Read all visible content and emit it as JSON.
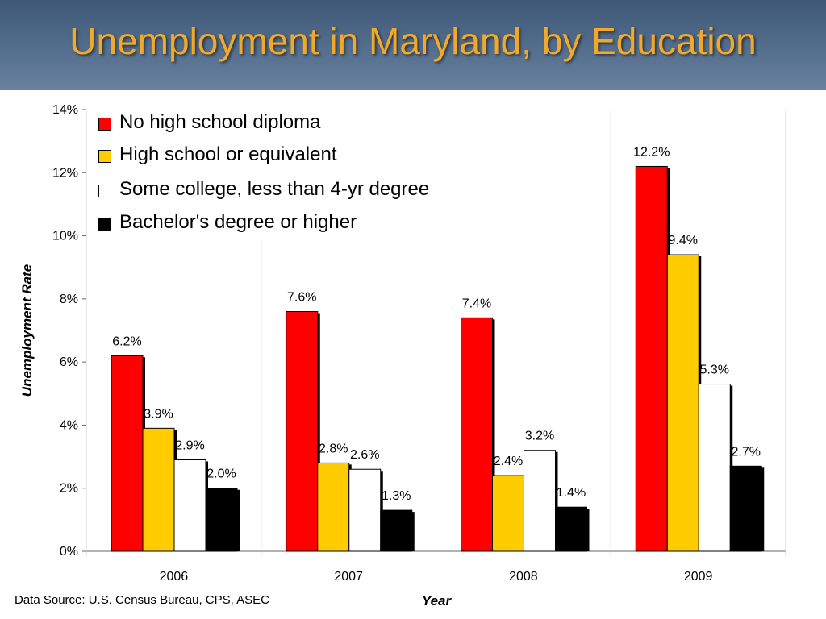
{
  "slide": {
    "title": "Unemployment in Maryland, by Education",
    "source": "Data Source: U.S. Census Bureau, CPS, ASEC"
  },
  "colors": {
    "title": "#f2a92a",
    "series": [
      "#ff0000",
      "#ffcc00",
      "#ffffff",
      "#000000"
    ]
  },
  "chart_data": {
    "type": "bar",
    "categories": [
      "2006",
      "2007",
      "2008",
      "2009"
    ],
    "series": [
      {
        "name": "No high school diploma",
        "values": [
          6.2,
          7.6,
          7.4,
          12.2
        ],
        "labels": [
          "6.2%",
          "7.6%",
          "7.4%",
          "12.2%"
        ]
      },
      {
        "name": "High school or equivalent",
        "values": [
          3.9,
          2.8,
          2.4,
          9.4
        ],
        "labels": [
          "3.9%",
          "2.8%",
          "2.4%",
          "9.4%"
        ]
      },
      {
        "name": "Some college, less than 4-yr degree",
        "values": [
          2.9,
          2.6,
          3.2,
          5.3
        ],
        "labels": [
          "2.9%",
          "2.6%",
          "3.2%",
          "5.3%"
        ]
      },
      {
        "name": "Bachelor's degree or higher",
        "values": [
          2.0,
          1.3,
          1.4,
          2.7
        ],
        "labels": [
          "2.0%",
          "1.3%",
          "1.4%",
          "2.7%"
        ]
      }
    ],
    "xlabel": "Year",
    "ylabel": "Unemployment Rate",
    "ylim": [
      0,
      14
    ],
    "yticks": [
      "0%",
      "2%",
      "4%",
      "6%",
      "8%",
      "10%",
      "12%",
      "14%"
    ],
    "grid": "vertical separators between year groups",
    "legend_position": "top-left"
  }
}
